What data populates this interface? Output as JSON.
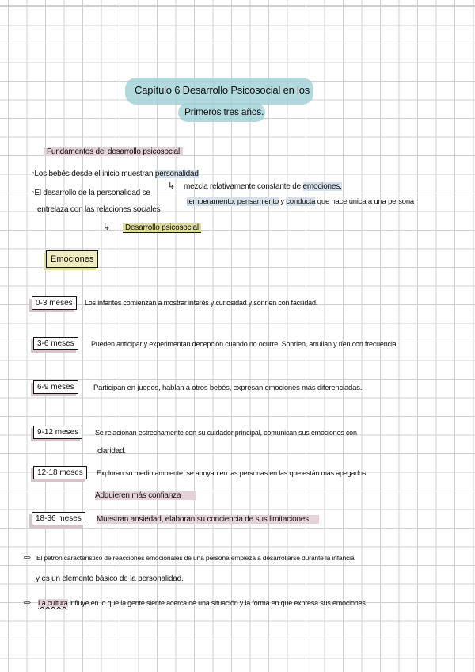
{
  "title": {
    "line1": "Capítulo 6 Desarrollo Psicosocial en los",
    "line2": "Primeros tres años."
  },
  "section1": {
    "heading": "Fundamentos del desarrollo psicosocial",
    "bullet1": {
      "text": "Los bebés desde el inicio muestran ",
      "highlight": "personalidad"
    },
    "bullet2": {
      "line1": "El desarrollo de la personalidad se",
      "line2": "entrelaza con las relaciones sociales"
    },
    "definition": {
      "line1_pre": "mezcla relativamente constante de ",
      "line1_hl": "emociones,",
      "line2_hl1": "temperamento, pensamiento",
      "line2_mid": " y ",
      "line2_hl2": "conducta",
      "line2_post": " que hace única a una persona"
    },
    "result": "Desarrollo psicosocial"
  },
  "section2": {
    "heading": "Emociones",
    "stages": [
      {
        "age": "0-3 meses",
        "text": "Los infantes comienzan a mostrar interés y curiosidad y sonríen con facilidad.",
        "cont": ""
      },
      {
        "age": "3-6 meses",
        "text": "Pueden anticipar y experimentan decepción cuando no ocurre. Sonríen, arrullan y ríen con frecuencia",
        "cont": ""
      },
      {
        "age": "6-9 meses",
        "text": "Participan en juegos, hablan a otros bebés, expresan emociones más diferenciadas.",
        "cont": ""
      },
      {
        "age": "9-12 meses",
        "text": "Se relacionan estrechamente con su cuidador principal, comunican sus emociones con",
        "cont": "claridad."
      },
      {
        "age": "12-18 meses",
        "text": "Exploran su medio ambiente, se apoyan en las personas en las que están más apegados",
        "cont": "Adquieren más confianza"
      },
      {
        "age": "18-36 meses",
        "text": "Muestran ansiedad, elaboran su conciencia de sus limitaciones.",
        "cont": ""
      }
    ]
  },
  "notes": [
    {
      "line1": "El patrón característico de reacciones emocionales de una persona empieza a desarrollarse durante la infancia",
      "line2": "y es un elemento básico de la personalidad."
    },
    {
      "highlight": "La cultura",
      "line1": " influye en lo que la gente siente acerca de una situación y la forma en que expresa sus emociones.",
      "line2": ""
    }
  ],
  "colors": {
    "title_highlight": "#9fd0d4",
    "pink_highlight": "#e6d3da",
    "blue_highlight": "#d5e0ea",
    "olive_highlight": "#dedba0"
  }
}
